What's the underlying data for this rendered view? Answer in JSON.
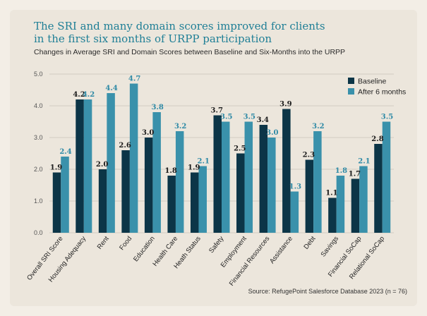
{
  "header": {
    "title_line1": "The SRI and many domain scores improved for clients",
    "title_line2": "in the first six months of URPP participation",
    "subtitle": "Changes in Average SRI and Domain Scores between Baseline and Six-Months into the URPP"
  },
  "footer": {
    "source": "Source: RefugePoint Salesforce Database 2023 (n = 76)"
  },
  "colors": {
    "baseline": "#0c3547",
    "after": "#3a91ab",
    "after_label": "#2f8aa6",
    "baseline_label": "#1c1c1c",
    "grid": "#d2ccc2"
  },
  "chart_data": {
    "type": "bar",
    "title": "The SRI and many domain scores improved for clients in the first six months of URPP participation",
    "subtitle": "Changes in Average SRI and Domain Scores between Baseline and Six-Months into the URPP",
    "xlabel": "",
    "ylabel": "",
    "ylim": [
      0,
      5
    ],
    "yticks": [
      "0.0",
      "1.0",
      "2.0",
      "3.0",
      "4.0",
      "5.0"
    ],
    "grid": true,
    "legend_position": "top-right",
    "categories": [
      "Overall SRI Score",
      "Housing Adequacy",
      "Rent",
      "Food",
      "Education",
      "Health Care",
      "Heath Status",
      "Safety",
      "Employment",
      "Financial Resources",
      "Assistance",
      "Debt",
      "Savings",
      "Financial SoCap",
      "Relational SoCap"
    ],
    "series": [
      {
        "name": "Baseline",
        "values": [
          1.9,
          4.2,
          2.0,
          2.6,
          3.0,
          1.8,
          1.9,
          3.7,
          2.5,
          3.4,
          3.9,
          2.3,
          1.1,
          1.7,
          2.8
        ],
        "labels": [
          "1.9",
          "4.2",
          "2.0",
          "2.6",
          "3.0",
          "1.8",
          "1.9",
          "3.7",
          "2.5",
          "3.4",
          "3.9",
          "2.3",
          "1.1",
          "1.7",
          "2.8"
        ]
      },
      {
        "name": "After 6 months",
        "values": [
          2.4,
          4.2,
          4.4,
          4.7,
          3.8,
          3.2,
          2.1,
          3.5,
          3.5,
          3.0,
          1.3,
          3.2,
          1.8,
          2.1,
          3.5
        ],
        "labels": [
          "2.4",
          "4.2",
          "4.4",
          "4.7",
          "3.8",
          "3.2",
          "2.1",
          "3.5",
          "3.5",
          "3.0",
          "1.3",
          "3.2",
          "1.8",
          "2.1",
          "3.5"
        ]
      }
    ]
  }
}
